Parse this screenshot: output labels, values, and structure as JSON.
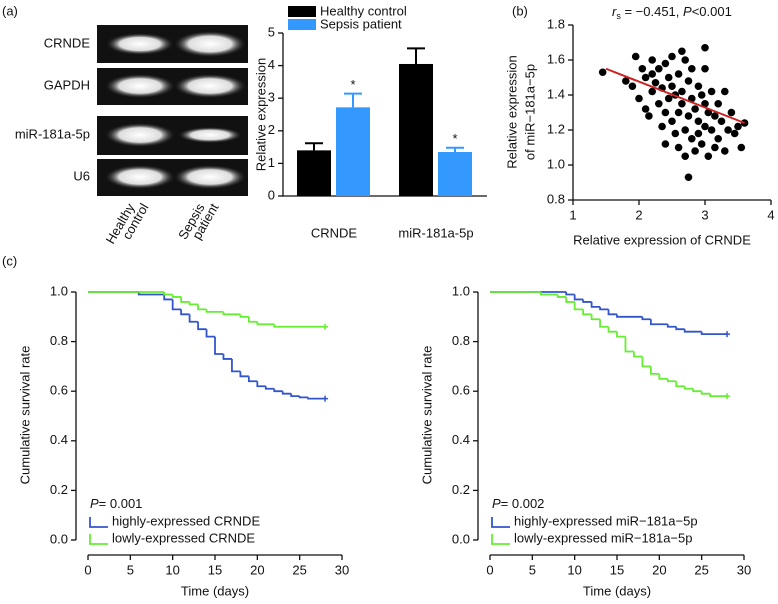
{
  "panels": {
    "a": "(a)",
    "b": "(b)",
    "c": "(c)"
  },
  "gel": {
    "rows": [
      "CRNDE",
      "GAPDH",
      "miR-181a-5p",
      "U6"
    ],
    "columns": [
      [
        "Healthy",
        "control"
      ],
      [
        "Sepsis",
        "patient"
      ]
    ]
  },
  "chart_data": [
    {
      "type": "bar",
      "ylabel": "Relative expression",
      "categories": [
        "CRNDE",
        "miR-181a-5p"
      ],
      "series": [
        {
          "name": "Healthy control",
          "color": "#000000",
          "values": [
            1.4,
            4.05
          ],
          "errors": [
            0.22,
            0.48
          ]
        },
        {
          "name": "Sepsis patient",
          "color": "#3399ff",
          "values": [
            2.72,
            1.35
          ],
          "errors": [
            0.42,
            0.13
          ],
          "significance": [
            "*",
            "*"
          ]
        }
      ],
      "ylim": [
        0,
        5
      ],
      "yticks": [
        0,
        1,
        2,
        3,
        4,
        5
      ]
    },
    {
      "type": "scatter",
      "xlabel": "Relative expression of CRNDE",
      "ylabel": [
        "Relative expression",
        "of miR−181a−5p"
      ],
      "annotation": [
        "r",
        "s",
        " = −0.451, ",
        "P",
        "<0.001"
      ],
      "color": "#000000",
      "fit_line": {
        "color": "#cc2222",
        "x": [
          1.5,
          3.6
        ],
        "y": [
          1.55,
          1.24
        ]
      },
      "x": [
        1.45,
        1.8,
        1.9,
        1.95,
        2.0,
        2.05,
        2.1,
        2.1,
        2.15,
        2.2,
        2.2,
        2.25,
        2.3,
        2.3,
        2.35,
        2.35,
        2.4,
        2.4,
        2.45,
        2.45,
        2.5,
        2.5,
        2.5,
        2.55,
        2.55,
        2.6,
        2.6,
        2.6,
        2.65,
        2.65,
        2.7,
        2.7,
        2.7,
        2.75,
        2.75,
        2.8,
        2.8,
        2.8,
        2.85,
        2.85,
        2.9,
        2.9,
        2.9,
        2.95,
        2.95,
        3.0,
        3.0,
        3.0,
        3.05,
        3.05,
        3.1,
        3.1,
        3.15,
        3.15,
        3.2,
        3.2,
        3.25,
        3.3,
        3.3,
        3.35,
        3.4,
        3.45,
        3.5,
        3.55,
        3.6,
        2.75,
        2.2,
        2.4,
        3.0,
        2.65
      ],
      "y": [
        1.53,
        1.48,
        1.45,
        1.62,
        1.38,
        1.55,
        1.32,
        1.5,
        1.28,
        1.6,
        1.42,
        1.47,
        1.35,
        1.55,
        1.22,
        1.44,
        1.58,
        1.3,
        1.38,
        1.5,
        1.25,
        1.45,
        1.62,
        1.18,
        1.4,
        1.52,
        1.3,
        1.1,
        1.42,
        1.35,
        1.6,
        1.2,
        1.05,
        1.48,
        1.28,
        1.38,
        1.15,
        1.55,
        1.32,
        1.08,
        1.45,
        1.25,
        1.18,
        1.4,
        1.12,
        1.35,
        1.55,
        1.22,
        1.3,
        1.05,
        1.42,
        1.2,
        1.28,
        1.1,
        1.35,
        1.15,
        1.25,
        1.42,
        1.08,
        1.2,
        1.3,
        1.18,
        1.22,
        1.1,
        1.24,
        0.93,
        1.52,
        1.12,
        1.67,
        1.65
      ],
      "xlim": [
        1,
        4
      ],
      "xticks": [
        1,
        2,
        3,
        4
      ],
      "ylim": [
        0.8,
        1.8
      ],
      "yticks": [
        0.8,
        {
          "value": 1.0,
          "label": "1.0"
        },
        1.2,
        1.4,
        1.6,
        1.8
      ]
    },
    {
      "type": "km",
      "xlabel": "Time (days)",
      "ylabel": "Cumulative survival rate",
      "p_label": [
        "P",
        "= 0.001"
      ],
      "series": [
        {
          "name": "highly-expressed CRNDE",
          "color": "#3355cc",
          "x": [
            0,
            6,
            9,
            10,
            11,
            12,
            13,
            14,
            15,
            16,
            17,
            18,
            19,
            20,
            21,
            22,
            23,
            24,
            25,
            26,
            28
          ],
          "values": [
            1.0,
            0.99,
            0.97,
            0.93,
            0.91,
            0.88,
            0.85,
            0.82,
            0.75,
            0.73,
            0.68,
            0.66,
            0.64,
            0.62,
            0.61,
            0.6,
            0.59,
            0.58,
            0.575,
            0.57,
            0.57
          ]
        },
        {
          "name": "lowly-expressed CRNDE",
          "color": "#66ee33",
          "x": [
            0,
            9,
            10,
            11,
            12,
            13,
            14,
            16,
            18,
            19,
            20,
            22,
            28
          ],
          "values": [
            1.0,
            0.99,
            0.98,
            0.96,
            0.95,
            0.93,
            0.92,
            0.91,
            0.9,
            0.88,
            0.87,
            0.86,
            0.86
          ]
        }
      ],
      "xlim": [
        0,
        30
      ],
      "xticks": [
        0,
        5,
        10,
        15,
        20,
        25,
        30
      ],
      "ylim": [
        0,
        1
      ],
      "yticks": [
        {
          "value": 0,
          "label": "0.0"
        },
        0.2,
        0.4,
        0.6,
        0.8,
        {
          "value": 1,
          "label": "1.0"
        }
      ]
    },
    {
      "type": "km",
      "xlabel": "Time (days)",
      "ylabel": "Cumulative survival rate",
      "p_label": [
        "P",
        "= 0.002"
      ],
      "series": [
        {
          "name": "highly-expressed miR−181a−5p",
          "color": "#3355cc",
          "x": [
            0,
            9,
            10,
            11,
            12,
            13,
            14,
            15,
            18,
            19,
            21,
            22,
            23,
            25,
            28
          ],
          "values": [
            1.0,
            0.99,
            0.97,
            0.96,
            0.94,
            0.93,
            0.91,
            0.9,
            0.89,
            0.87,
            0.86,
            0.85,
            0.84,
            0.83,
            0.83
          ]
        },
        {
          "name": "lowly-expressed miR−181a−5p",
          "color": "#66ee33",
          "x": [
            0,
            6,
            8,
            9,
            10,
            11,
            12,
            13,
            14,
            15,
            16,
            17,
            18,
            19,
            20,
            21,
            22,
            23,
            24,
            25,
            26,
            28
          ],
          "values": [
            1.0,
            0.99,
            0.98,
            0.96,
            0.93,
            0.91,
            0.89,
            0.86,
            0.84,
            0.82,
            0.76,
            0.74,
            0.7,
            0.67,
            0.65,
            0.64,
            0.62,
            0.61,
            0.6,
            0.59,
            0.58,
            0.58
          ]
        }
      ],
      "xlim": [
        0,
        30
      ],
      "xticks": [
        0,
        5,
        10,
        15,
        20,
        25,
        30
      ],
      "ylim": [
        0,
        1
      ],
      "yticks": [
        {
          "value": 0,
          "label": "0.0"
        },
        0.2,
        0.4,
        0.6,
        0.8,
        {
          "value": 1,
          "label": "1.0"
        }
      ]
    }
  ]
}
